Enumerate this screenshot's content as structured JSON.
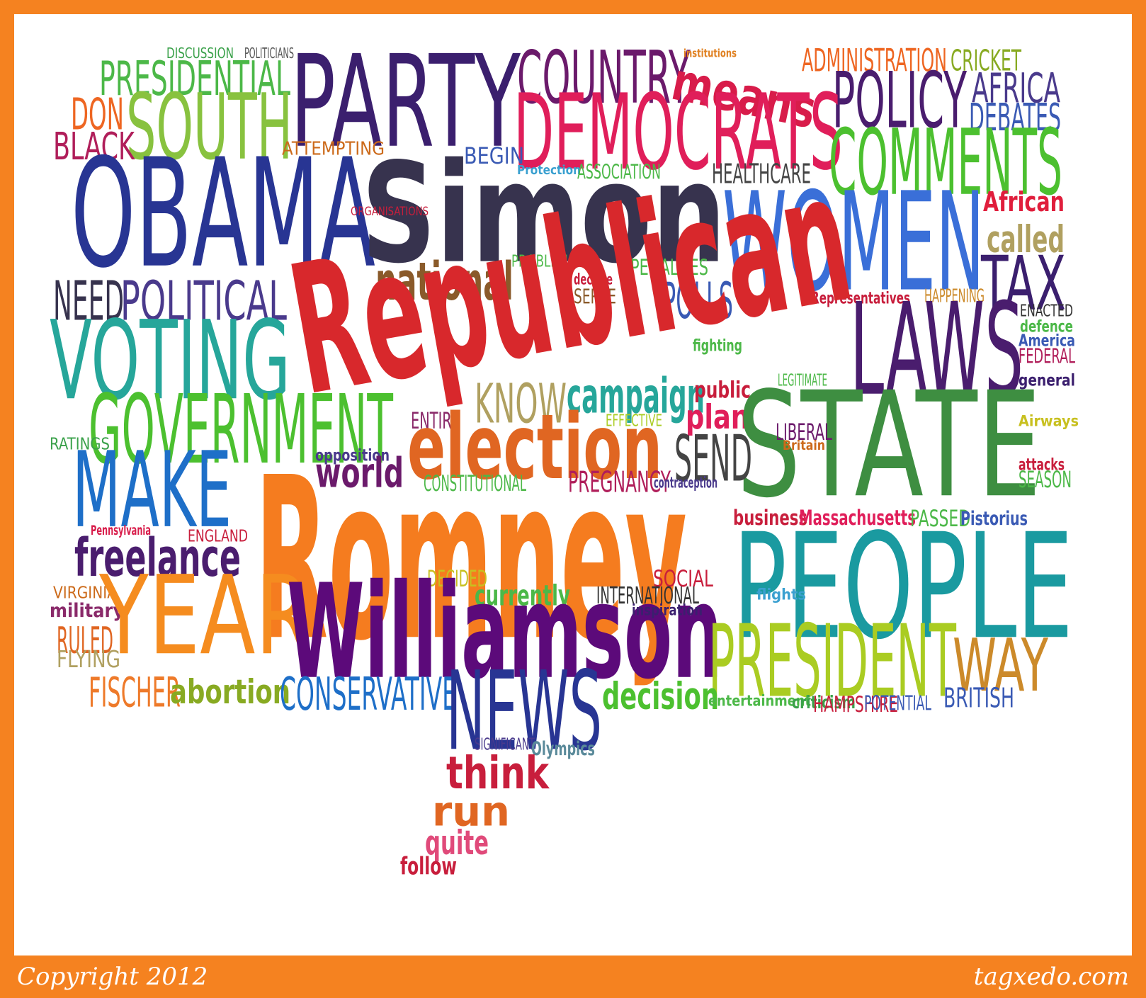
{
  "footer": {
    "copyright": "Copyright 2012",
    "site": "tagxedo.com"
  },
  "words": [
    {
      "t": "DISCUSSION",
      "c": "#3aa14a"
    },
    {
      "t": "POLITICIANS",
      "c": "#555555"
    },
    {
      "t": "PARTY",
      "c": "#3b1f6e"
    },
    {
      "t": "COUNTRY",
      "c": "#6b1a6b"
    },
    {
      "t": "institutions",
      "c": "#e08020"
    },
    {
      "t": "ADMINISTRATION",
      "c": "#ee6622"
    },
    {
      "t": "CRICKET",
      "c": "#88aa22"
    },
    {
      "t": "PRESIDENTIAL",
      "c": "#4cb848"
    },
    {
      "t": "means",
      "c": "#d81c4a"
    },
    {
      "t": "POLICY",
      "c": "#4a1d6e"
    },
    {
      "t": "AFRICA",
      "c": "#4a3a8c"
    },
    {
      "t": "DON",
      "c": "#ee6622"
    },
    {
      "t": "SOUTH",
      "c": "#88c23f"
    },
    {
      "t": "DEMOCRATS",
      "c": "#e01e5a"
    },
    {
      "t": "DEBATES",
      "c": "#3a5ab4"
    },
    {
      "t": "BLACK",
      "c": "#b01e5a"
    },
    {
      "t": "ATTEMPTING",
      "c": "#cc6a1a"
    },
    {
      "t": "BEGIN",
      "c": "#3a5ab4"
    },
    {
      "t": "COMMENTS",
      "c": "#4cc02f"
    },
    {
      "t": "OBAMA",
      "c": "#283593"
    },
    {
      "t": "Protection",
      "c": "#3aa0d0"
    },
    {
      "t": "ASSOCIATION",
      "c": "#4cb848"
    },
    {
      "t": "HEALTHCARE",
      "c": "#444444"
    },
    {
      "t": "Simon",
      "c": "#37334e"
    },
    {
      "t": "WOMEN",
      "c": "#3a6fd8"
    },
    {
      "t": "ORGANISATIONS",
      "c": "#c81e3c"
    },
    {
      "t": "African",
      "c": "#e01e3c"
    },
    {
      "t": "called",
      "c": "#b0a060"
    },
    {
      "t": "PROBLEM",
      "c": "#4cb848"
    },
    {
      "t": "national",
      "c": "#8a5a2a"
    },
    {
      "t": "PENALTIES",
      "c": "#4cb848"
    },
    {
      "t": "TAX",
      "c": "#3b1f6e"
    },
    {
      "t": "NEED",
      "c": "#37334e"
    },
    {
      "t": "POLITICAL",
      "c": "#4a3a8c"
    },
    {
      "t": "declare",
      "c": "#c81e3c"
    },
    {
      "t": "SERVE",
      "c": "#8a5a2a"
    },
    {
      "t": "POLLS",
      "c": "#3a5ab4"
    },
    {
      "t": "Representatives",
      "c": "#c81e3c"
    },
    {
      "t": "HAPPENING",
      "c": "#cc8a2a"
    },
    {
      "t": "Republican",
      "c": "#d8282c"
    },
    {
      "t": "LAWS",
      "c": "#4a1d6e"
    },
    {
      "t": "ENACTED",
      "c": "#333333"
    },
    {
      "t": "defence",
      "c": "#4cb848"
    },
    {
      "t": "VOTING",
      "c": "#26a69a"
    },
    {
      "t": "America",
      "c": "#3a5ab4"
    },
    {
      "t": "FEDERAL",
      "c": "#b01e5a"
    },
    {
      "t": "fighting",
      "c": "#4cb848"
    },
    {
      "t": "LEGITIMATE",
      "c": "#4cb848"
    },
    {
      "t": "general",
      "c": "#3b1f6e"
    },
    {
      "t": "KNOW",
      "c": "#b0a060"
    },
    {
      "t": "campaign",
      "c": "#26a69a"
    },
    {
      "t": "public",
      "c": "#c81e3c"
    },
    {
      "t": "GOVERNMENT",
      "c": "#4cc02f"
    },
    {
      "t": "ENTIRE",
      "c": "#8a2a6a"
    },
    {
      "t": "EFFECTIVE",
      "c": "#aacc22"
    },
    {
      "t": "plan",
      "c": "#e01e5a"
    },
    {
      "t": "STATE",
      "c": "#3e8e41"
    },
    {
      "t": "Airways",
      "c": "#c8c020"
    },
    {
      "t": "election",
      "c": "#e06622"
    },
    {
      "t": "LIBERAL",
      "c": "#6b1a6b"
    },
    {
      "t": "RATINGS",
      "c": "#3aa14a"
    },
    {
      "t": "Britain",
      "c": "#cc6a1a"
    },
    {
      "t": "SEND",
      "c": "#444444"
    },
    {
      "t": "opposition",
      "c": "#4a3a8c"
    },
    {
      "t": "MAKE",
      "c": "#1e6fc8"
    },
    {
      "t": "world",
      "c": "#6b1a6b"
    },
    {
      "t": "attacks",
      "c": "#c81e3c"
    },
    {
      "t": "SEASON",
      "c": "#4cb848"
    },
    {
      "t": "CONSTITUTIONAL",
      "c": "#4cb848"
    },
    {
      "t": "PREGNANCY",
      "c": "#b01e5a"
    },
    {
      "t": "contraception",
      "c": "#4a3a8c"
    },
    {
      "t": "Romney",
      "c": "#f57c1f"
    },
    {
      "t": "business",
      "c": "#c81e3c"
    },
    {
      "t": "Massachusetts",
      "c": "#e01e5a"
    },
    {
      "t": "PASSED",
      "c": "#4cb848"
    },
    {
      "t": "Pistorius",
      "c": "#3a5ab4"
    },
    {
      "t": "Pennsylvania",
      "c": "#d81c4a"
    },
    {
      "t": "ENGLAND",
      "c": "#c81e3c"
    },
    {
      "t": "freelance",
      "c": "#4a1d6e"
    },
    {
      "t": "PEOPLE",
      "c": "#1a9aa0"
    },
    {
      "t": "DECIDED",
      "c": "#c8c020"
    },
    {
      "t": "SOCIAL",
      "c": "#c81e3c"
    },
    {
      "t": "VIRGINIA",
      "c": "#cc6a1a"
    },
    {
      "t": "currently",
      "c": "#4cb848"
    },
    {
      "t": "INTERNATIONAL",
      "c": "#333333"
    },
    {
      "t": "flights",
      "c": "#3aa0d0"
    },
    {
      "t": "military",
      "c": "#8a2a6a"
    },
    {
      "t": "YEAR",
      "c": "#f58c1f"
    },
    {
      "t": "Williamson",
      "c": "#5c0a7a"
    },
    {
      "t": "inspiration",
      "c": "#3b1f6e"
    },
    {
      "t": "RULED",
      "c": "#e06622"
    },
    {
      "t": "FLYING",
      "c": "#b0a060"
    },
    {
      "t": "PRESIDENT",
      "c": "#aacc22"
    },
    {
      "t": "WAY",
      "c": "#cc8a2a"
    },
    {
      "t": "FISCHER",
      "c": "#ee7a2a"
    },
    {
      "t": "abortion",
      "c": "#88aa22"
    },
    {
      "t": "CONSERVATIVE",
      "c": "#1e6fc8"
    },
    {
      "t": "NEWS",
      "c": "#283593"
    },
    {
      "t": "decision",
      "c": "#4cc02f"
    },
    {
      "t": "BRITISH",
      "c": "#3a5ab4"
    },
    {
      "t": "entertainment",
      "c": "#4cb848"
    },
    {
      "t": "criticism",
      "c": "#3aa14a"
    },
    {
      "t": "HAMPSHIRE",
      "c": "#c81e3c"
    },
    {
      "t": "POTENTIAL",
      "c": "#3a5ab4"
    },
    {
      "t": "SIGNIFICANT",
      "c": "#4a3a8c"
    },
    {
      "t": "Olympics",
      "c": "#5a8a9a"
    },
    {
      "t": "think",
      "c": "#c81e3c"
    },
    {
      "t": "run",
      "c": "#e06622"
    },
    {
      "t": "quite",
      "c": "#e04a7a"
    },
    {
      "t": "follow",
      "c": "#c81e3c"
    }
  ]
}
